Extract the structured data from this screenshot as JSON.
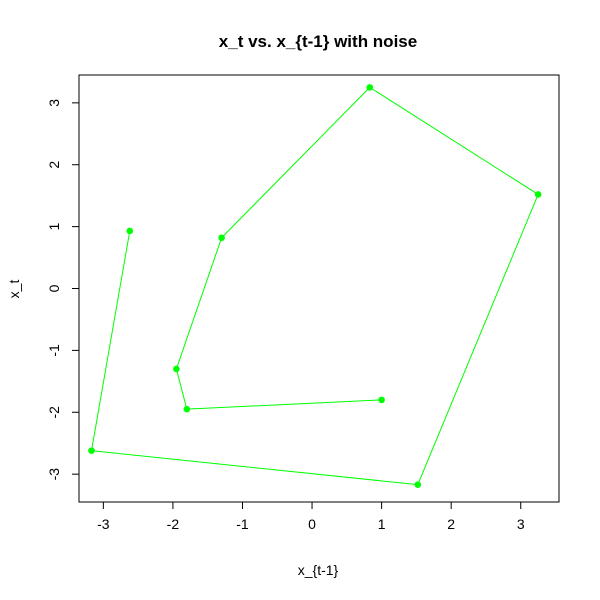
{
  "chart_data": {
    "type": "line",
    "title": "x_t vs. x_{t-1} with noise",
    "xlabel": "x_{t-1}",
    "ylabel": "x_t",
    "xlim": [
      -3.35,
      3.55
    ],
    "ylim": [
      -3.45,
      3.45
    ],
    "xticks": [
      -3,
      -2,
      -1,
      0,
      1,
      2,
      3
    ],
    "yticks": [
      -3,
      -2,
      -1,
      0,
      1,
      2,
      3
    ],
    "tick_labels": {
      "x": [
        "-3",
        "-2",
        "-1",
        "0",
        "1",
        "2",
        "3"
      ],
      "y": [
        "-3",
        "-2",
        "-1",
        "0",
        "1",
        "2",
        "3"
      ]
    },
    "grid": false,
    "series": [
      {
        "color": "#00ff00",
        "marker": "filled-circle",
        "points": [
          {
            "x": 1.0,
            "y": -1.8
          },
          {
            "x": -1.8,
            "y": -1.95
          },
          {
            "x": -1.95,
            "y": -1.3
          },
          {
            "x": -1.3,
            "y": 0.82
          },
          {
            "x": 0.83,
            "y": 3.25
          },
          {
            "x": 3.25,
            "y": 1.52
          },
          {
            "x": 1.52,
            "y": -3.17
          },
          {
            "x": -3.17,
            "y": -2.62
          },
          {
            "x": -2.62,
            "y": 0.93
          }
        ]
      }
    ]
  }
}
